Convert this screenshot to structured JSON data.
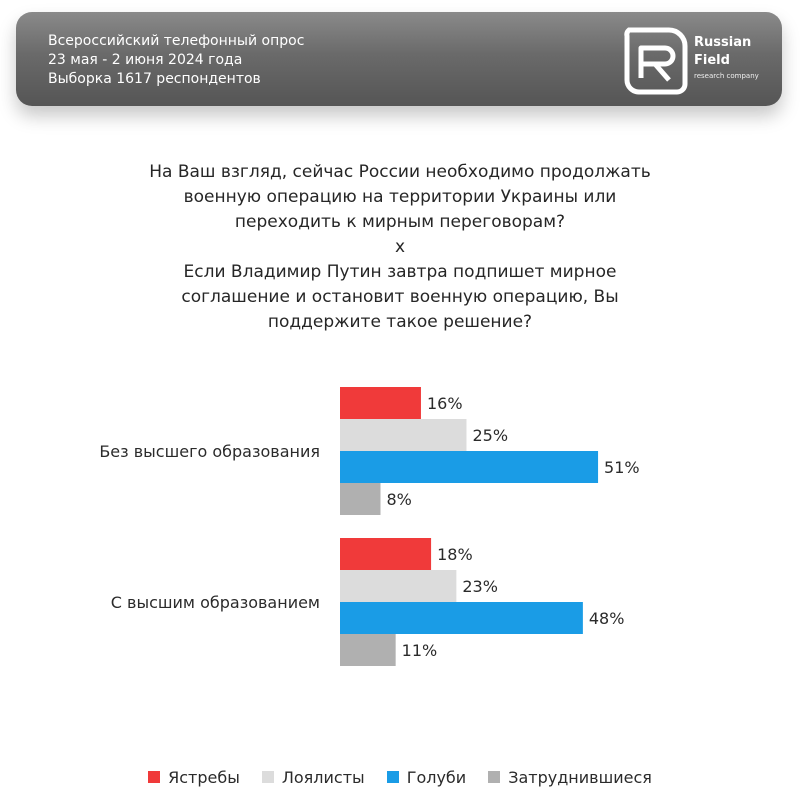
{
  "header": {
    "lines": [
      "Всероссийский телефонный опрос",
      "23 мая - 2 июня 2024 года",
      "Выборка 1617 респондентов"
    ],
    "brand_line1": "Russian",
    "brand_line2": "Field",
    "brand_sub": "research company"
  },
  "question": {
    "lines": [
      "На Ваш взгляд, сейчас России необходимо продолжать",
      "военную операцию на территории Украины или",
      "переходить к мирным переговорам?",
      "x",
      "Если Владимир Путин завтра подпишет мирное",
      "соглашение и остановит военную операцию, Вы",
      "поддержите такое решение?"
    ]
  },
  "colors": {
    "hawks": "#f03a3a",
    "loyalists": "#dcdcdc",
    "doves": "#1a9ce6",
    "undecided": "#b0b0b0"
  },
  "chart_data": {
    "type": "bar",
    "orientation": "horizontal",
    "categories": [
      "Без высшего образования",
      "С высшим образованием"
    ],
    "series": [
      {
        "name": "Ястребы",
        "values": [
          16,
          18
        ],
        "color": "#f03a3a"
      },
      {
        "name": "Лоялисты",
        "values": [
          25,
          23
        ],
        "color": "#dcdcdc"
      },
      {
        "name": "Голуби",
        "values": [
          51,
          48
        ],
        "color": "#1a9ce6"
      },
      {
        "name": "Затруднившиеся",
        "values": [
          8,
          11
        ],
        "color": "#b0b0b0"
      }
    ],
    "value_suffix": "%",
    "xlim": [
      0,
      100
    ],
    "legend_position": "bottom",
    "grid": false
  }
}
